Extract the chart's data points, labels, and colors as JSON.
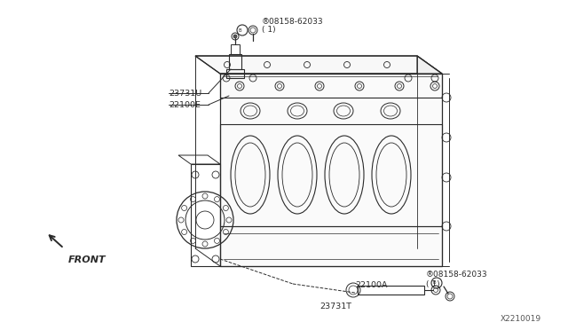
{
  "bg_color": "#ffffff",
  "line_color": "#2a2a2a",
  "fig_width": 6.4,
  "fig_height": 3.72,
  "dpi": 100,
  "labels": {
    "part1_top": "®08158-62033",
    "part1_top_sub": "( 1)",
    "part2_top": "23731U",
    "part3_top": "22100E",
    "part1_bot": "®08158-62033",
    "part1_bot_sub": "( 1)",
    "part2_bot": "23731T",
    "part3_bot": "22100A",
    "front": "FRONT",
    "diagram_id": "X2210019"
  }
}
